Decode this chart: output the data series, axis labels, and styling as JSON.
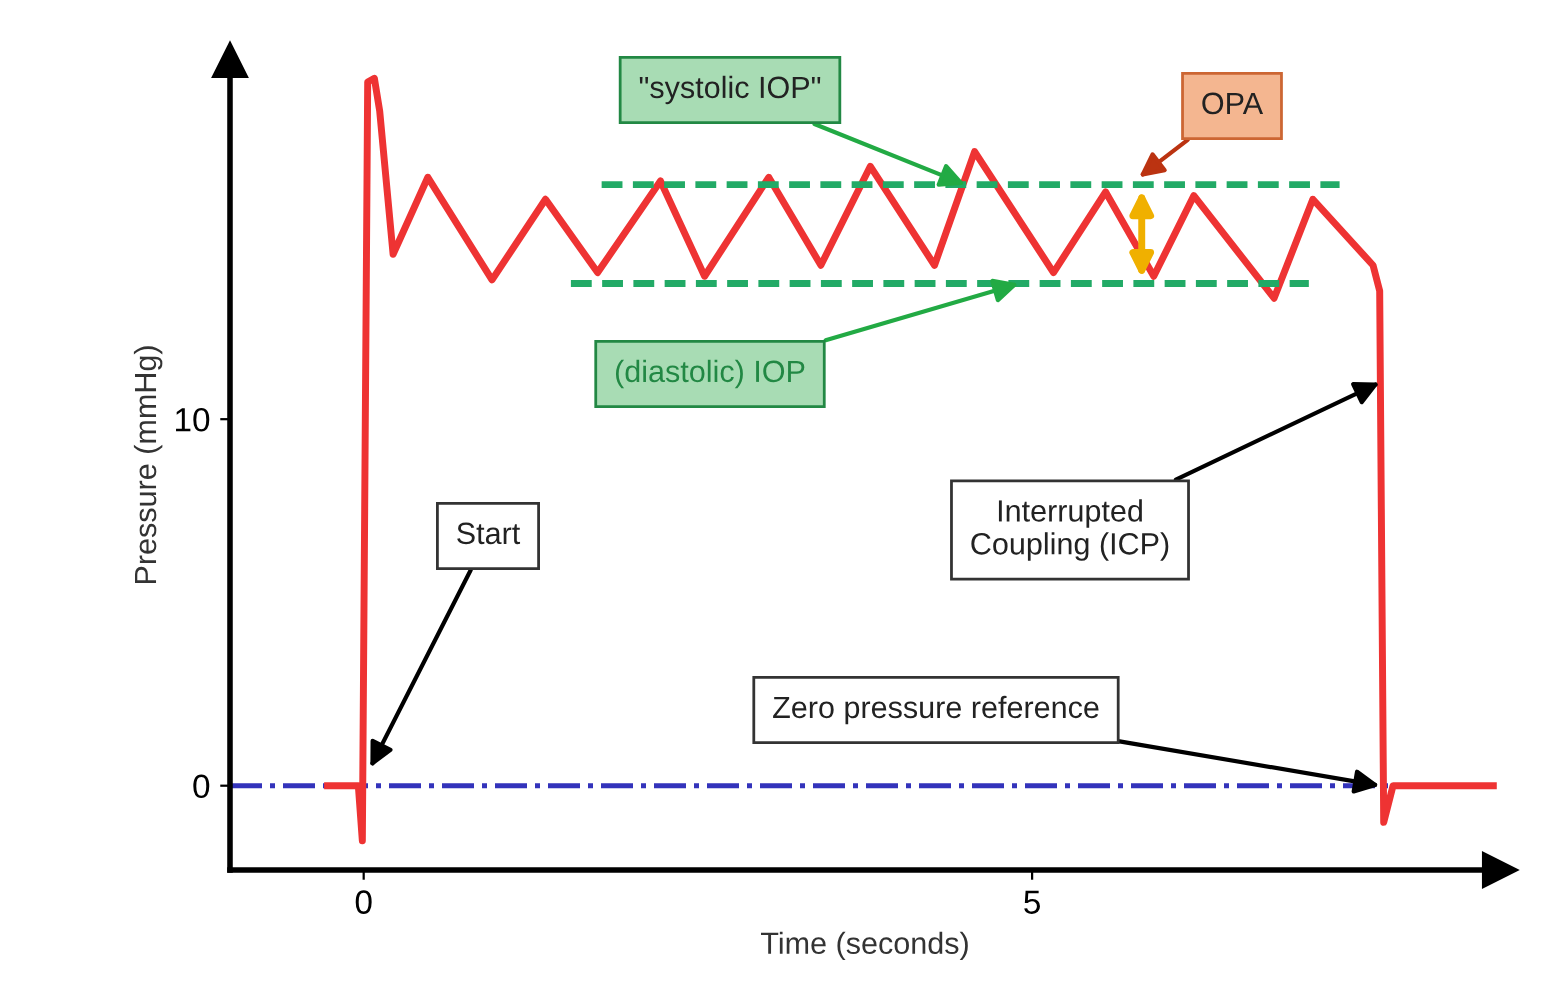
{
  "chart_data": {
    "type": "line",
    "xlabel": "Time (seconds)",
    "ylabel": "Pressure (mmHg)",
    "xlim": [
      -1,
      8.5
    ],
    "ylim": [
      -2.3,
      19.8
    ],
    "xticks": [
      0,
      5
    ],
    "yticks": [
      0,
      10
    ],
    "grid": false,
    "legend": false,
    "marker": "none",
    "series": [
      {
        "color": "#ee3333",
        "line_style": "solid",
        "x": [
          -0.27,
          -0.04,
          -0.01,
          0.03,
          0.08,
          0.12,
          0.22,
          0.48,
          0.96,
          1.36,
          1.75,
          2.22,
          2.55,
          3.03,
          3.42,
          3.79,
          4.27,
          4.57,
          5.16,
          5.55,
          5.91,
          6.21,
          6.81,
          7.1,
          7.55,
          7.6,
          7.63,
          7.7,
          8.45
        ],
        "values": [
          0,
          0,
          -1.5,
          19.2,
          19.3,
          18.4,
          14.5,
          16.6,
          13.8,
          16.0,
          14.0,
          16.5,
          13.9,
          16.6,
          14.2,
          16.9,
          14.2,
          17.3,
          14.0,
          16.2,
          13.9,
          16.1,
          13.3,
          16.0,
          14.2,
          13.5,
          -1.0,
          0,
          0
        ]
      },
      {
        "color": "#22aa66",
        "line_style": "dashed",
        "x": [
          1.78,
          7.3
        ],
        "values": [
          16.4,
          16.4
        ]
      },
      {
        "color": "#22aa66",
        "line_style": "dashed",
        "x": [
          1.55,
          7.07
        ],
        "values": [
          13.7,
          13.7
        ]
      }
    ],
    "ref_lines": [
      {
        "axis": "y",
        "value": 0,
        "color": "#3333bb",
        "line_style": "dashdot"
      }
    ],
    "annotations": [
      {
        "text": "\"systolic IOP\"",
        "x": 4.5,
        "y": 16.4
      },
      {
        "text": "(diastolic) IOP",
        "x": 4.9,
        "y": 13.7
      },
      {
        "text": "OPA",
        "x": 5.8,
        "y": 16.6
      },
      {
        "text": "Start",
        "x": 0.05,
        "y": 0.5
      },
      {
        "text": "Interrupted\nCoupling (ICP)",
        "x": 7.6,
        "y": 11
      },
      {
        "text": "Zero pressure reference",
        "x": 7.6,
        "y": 0
      }
    ]
  }
}
